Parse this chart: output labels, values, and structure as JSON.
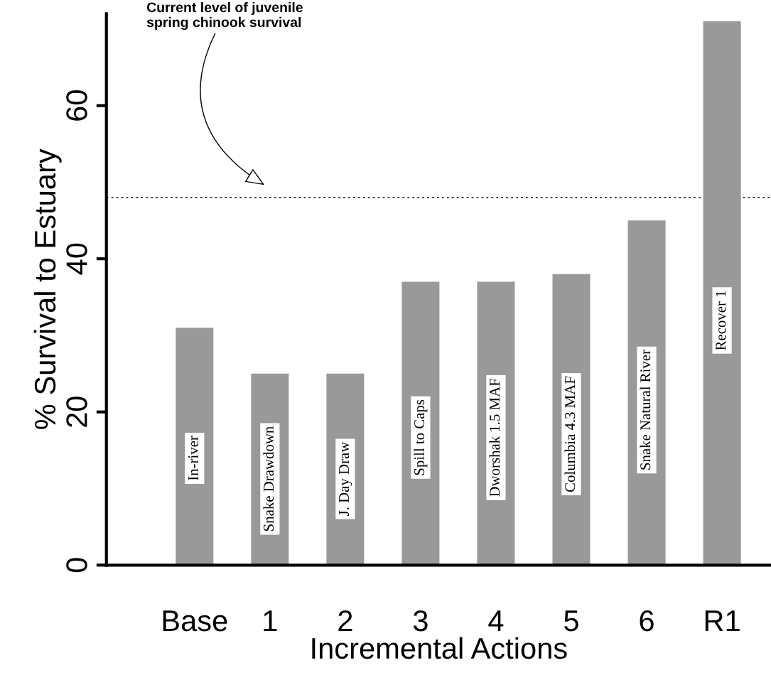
{
  "chart_data": {
    "type": "bar",
    "xlabel": "Incremental Actions",
    "ylabel": "% Survival to Estuary",
    "categories": [
      "Base",
      "1",
      "2",
      "3",
      "4",
      "5",
      "6",
      "R1"
    ],
    "values": [
      31,
      25,
      25,
      37,
      37,
      38,
      45,
      71
    ],
    "color": "#999999",
    "ylim": [
      0,
      72
    ],
    "yticks": [
      0,
      20,
      40,
      60
    ],
    "grid": false,
    "legend": false,
    "ref_lines": [
      {
        "axis": "y",
        "value": 48,
        "label": "Current level of juvenile\nspring chinook survival",
        "line_style": "dotted",
        "color": "#000000"
      }
    ],
    "annotations": [
      "In-river",
      "Snake Drawdown",
      "J. Day Draw",
      "Spill to Caps",
      "Dworshak 1.5 MAF",
      "Columbia 4.3 MAF",
      "Snake Natural River",
      "Recover 1"
    ]
  }
}
